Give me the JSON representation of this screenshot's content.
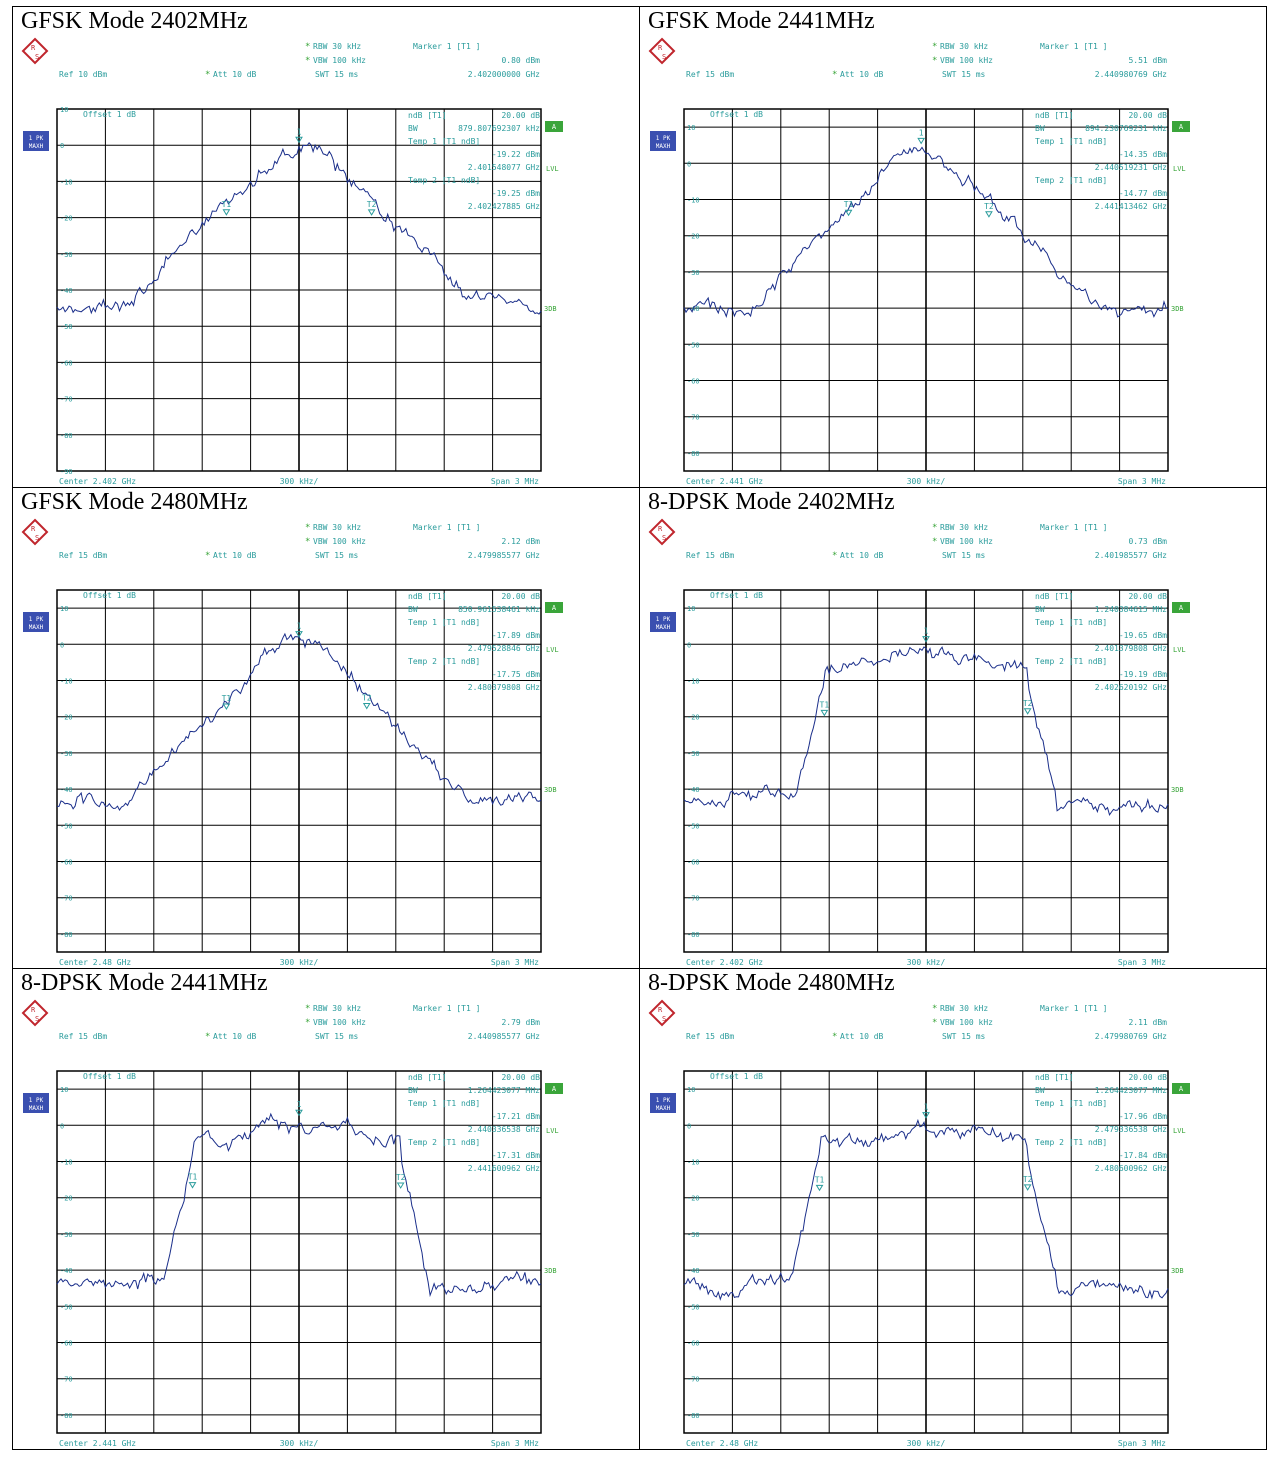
{
  "colors": {
    "trace": "#1a2e8a",
    "text": "#2a9c9c",
    "grid": "#000000",
    "green": "#3aa53a",
    "badge": "#3a4fb0",
    "logo": "#c0262d"
  },
  "labels": {
    "rbw": "RBW",
    "vbw": "VBW",
    "swt": "SWT",
    "att": "Att",
    "ref": "Ref",
    "offset": "Offset",
    "ndb": "ndB",
    "bw": "BW",
    "temp1": "Temp 1 [T1 ndB]",
    "temp2": "Temp 2 [T1 ndB]",
    "badge_line1": "1 PK",
    "badge_line2": "MAXH",
    "a_flag": "A",
    "lvl": "LVL",
    "db3": "3DB",
    "center": "Center",
    "span": "Span 3 MHz",
    "per_div": "300 kHz/",
    "t1": "T1",
    "t2": "T2",
    "m1": "1"
  },
  "chart_data": [
    {
      "title": "GFSK Mode 2402MHz",
      "type": "line",
      "rbw": "30 kHz",
      "vbw": "100 kHz",
      "swt": "15 ms",
      "ref": "10 dBm",
      "att": "10 dB",
      "offset": "1 dB",
      "marker_label": "Marker 1 [T1 ]",
      "marker_level": "0.80 dBm",
      "marker_freq": "2.402000000 GHz",
      "ndb_value": "20.00 dB",
      "bw_value": "879.807692307 kHz",
      "t1_level": "-19.22 dBm",
      "t1_freq": "2.401548077 GHz",
      "t2_level": "-19.25 dBm",
      "t2_freq": "2.402427885 GHz",
      "center": "2.402 GHz",
      "y_ticks": [
        "10",
        "0",
        "-10",
        "-20",
        "-30",
        "-40",
        "-50",
        "-60",
        "-70",
        "-80",
        "-90"
      ],
      "ylim": [
        -90,
        10
      ],
      "display_line": -45,
      "shape": "gfsk",
      "t1_x": 0.35,
      "t2_x": 0.65,
      "m_x": 0.5,
      "peak": 1,
      "floor": -46
    },
    {
      "title": "GFSK Mode 2441MHz",
      "type": "line",
      "rbw": "30 kHz",
      "vbw": "100 kHz",
      "swt": "15 ms",
      "ref": "15 dBm",
      "att": "10 dB",
      "offset": "1 dB",
      "marker_label": "Marker 1 [T1 ]",
      "marker_level": "5.51 dBm",
      "marker_freq": "2.440980769 GHz",
      "ndb_value": "20.00 dB",
      "bw_value": "894.230769231 kHz",
      "t1_level": "-14.35 dBm",
      "t1_freq": "2.440519231 GHz",
      "t2_level": "-14.77 dBm",
      "t2_freq": "2.441413462 GHz",
      "center": "2.441 GHz",
      "y_ticks": [
        "10",
        "0",
        "-10",
        "-20",
        "-30",
        "-40",
        "-50",
        "-60",
        "-70",
        "-80"
      ],
      "ylim": [
        -85,
        15
      ],
      "display_line": -40,
      "shape": "gfsk",
      "t1_x": 0.34,
      "t2_x": 0.63,
      "m_x": 0.49,
      "peak": 5.5,
      "floor": -42
    },
    {
      "title": "GFSK Mode 2480MHz",
      "type": "line",
      "rbw": "30 kHz",
      "vbw": "100 kHz",
      "swt": "15 ms",
      "ref": "15 dBm",
      "att": "10 dB",
      "offset": "1 dB",
      "marker_label": "Marker 1 [T1 ]",
      "marker_level": "2.12 dBm",
      "marker_freq": "2.479985577 GHz",
      "ndb_value": "20.00 dB",
      "bw_value": "850.961538461 kHz",
      "t1_level": "-17.89 dBm",
      "t1_freq": "2.479528846 GHz",
      "t2_level": "-17.75 dBm",
      "t2_freq": "2.480379808 GHz",
      "center": "2.48 GHz",
      "y_ticks": [
        "10",
        "0",
        "-10",
        "-20",
        "-30",
        "-40",
        "-50",
        "-60",
        "-70",
        "-80"
      ],
      "ylim": [
        -85,
        15
      ],
      "display_line": -40,
      "shape": "gfsk",
      "t1_x": 0.35,
      "t2_x": 0.64,
      "m_x": 0.5,
      "peak": 2,
      "floor": -46
    },
    {
      "title": "8-DPSK Mode 2402MHz",
      "type": "line",
      "rbw": "30 kHz",
      "vbw": "100 kHz",
      "swt": "15 ms",
      "ref": "15 dBm",
      "att": "10 dB",
      "offset": "1 dB",
      "marker_label": "Marker 1 [T1 ]",
      "marker_level": "0.73 dBm",
      "marker_freq": "2.401985577 GHz",
      "ndb_value": "20.00 dB",
      "bw_value": "1.240384615 MHz",
      "t1_level": "-19.65 dBm",
      "t1_freq": "2.401379808 GHz",
      "t2_level": "-19.19 dBm",
      "t2_freq": "2.402620192 GHz",
      "center": "2.402 GHz",
      "y_ticks": [
        "10",
        "0",
        "-10",
        "-20",
        "-30",
        "-40",
        "-50",
        "-60",
        "-70",
        "-80"
      ],
      "ylim": [
        -85,
        15
      ],
      "display_line": -40,
      "shape": "dpsk",
      "t1_x": 0.29,
      "t2_x": 0.71,
      "m_x": 0.5,
      "peak": 1,
      "floor": -43
    },
    {
      "title": "8-DPSK Mode 2441MHz",
      "type": "line",
      "rbw": "30 kHz",
      "vbw": "100 kHz",
      "swt": "15 ms",
      "ref": "15 dBm",
      "att": "10 dB",
      "offset": "1 dB",
      "marker_label": "Marker 1 [T1 ]",
      "marker_level": "2.79 dBm",
      "marker_freq": "2.440985577 GHz",
      "ndb_value": "20.00 dB",
      "bw_value": "1.264423077 MHz",
      "t1_level": "-17.21 dBm",
      "t1_freq": "2.440336538 GHz",
      "t2_level": "-17.31 dBm",
      "t2_freq": "2.441600962 GHz",
      "center": "2.441 GHz",
      "y_ticks": [
        "10",
        "0",
        "-10",
        "-20",
        "-30",
        "-40",
        "-50",
        "-60",
        "-70",
        "-80"
      ],
      "ylim": [
        -85,
        15
      ],
      "display_line": -40,
      "shape": "dpsk",
      "t1_x": 0.28,
      "t2_x": 0.71,
      "m_x": 0.5,
      "peak": 3,
      "floor": -43
    },
    {
      "title": "8-DPSK Mode 2480MHz",
      "type": "line",
      "rbw": "30 kHz",
      "vbw": "100 kHz",
      "swt": "15 ms",
      "ref": "15 dBm",
      "att": "10 dB",
      "offset": "1 dB",
      "marker_label": "Marker 1 [T1 ]",
      "marker_level": "2.11 dBm",
      "marker_freq": "2.479980769 GHz",
      "ndb_value": "20.00 dB",
      "bw_value": "1.264423077 MHz",
      "t1_level": "-17.96 dBm",
      "t1_freq": "2.479336538 GHz",
      "t2_level": "-17.84 dBm",
      "t2_freq": "2.480600962 GHz",
      "center": "2.48 GHz",
      "y_ticks": [
        "10",
        "0",
        "-10",
        "-20",
        "-30",
        "-40",
        "-50",
        "-60",
        "-70",
        "-80"
      ],
      "ylim": [
        -85,
        15
      ],
      "display_line": -40,
      "shape": "dpsk",
      "t1_x": 0.28,
      "t2_x": 0.71,
      "m_x": 0.5,
      "peak": 2,
      "floor": -44
    }
  ]
}
